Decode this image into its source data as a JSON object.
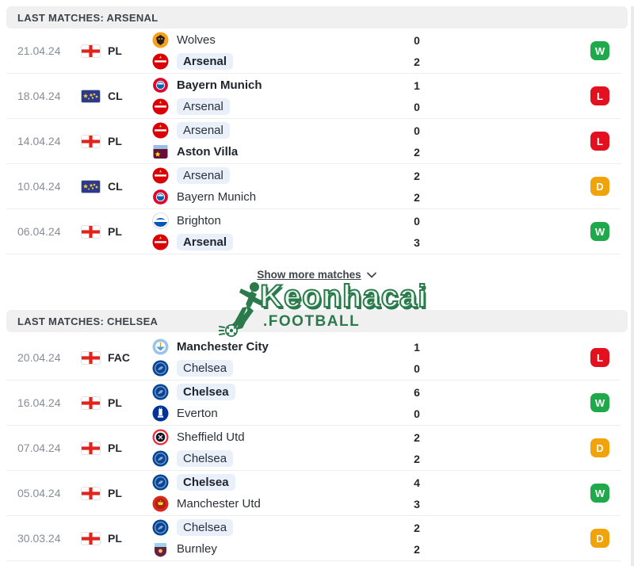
{
  "page": {
    "background": "#ffffff"
  },
  "result_colors": {
    "W": "#1fa94a",
    "L": "#e3101f",
    "D": "#f0a30a"
  },
  "highlight_bg": "#e9f0fa",
  "watermark": {
    "line1": "Keonhacai",
    "line2": ".FOOTBALL",
    "color": "#2a7a4b"
  },
  "show_more": {
    "label": "Show more matches"
  },
  "teams": {
    "wolves": {
      "name": "Wolves",
      "colors": [
        "#F9A01B",
        "#231F20"
      ]
    },
    "arsenal": {
      "name": "Arsenal",
      "colors": [
        "#DB0007",
        "#FFFFFF"
      ]
    },
    "bayern": {
      "name": "Bayern Munich",
      "colors": [
        "#DC052D",
        "#0066B2"
      ]
    },
    "astonvilla": {
      "name": "Aston Villa",
      "colors": [
        "#670E36",
        "#FFE600",
        "#95BFE5"
      ]
    },
    "brighton": {
      "name": "Brighton",
      "colors": [
        "#0057B8",
        "#FFFFFF"
      ]
    },
    "mancity": {
      "name": "Manchester City",
      "colors": [
        "#98C5E9",
        "#FFFFFF"
      ]
    },
    "chelsea": {
      "name": "Chelsea",
      "colors": [
        "#034694",
        "#8FA2D4"
      ]
    },
    "everton": {
      "name": "Everton",
      "colors": [
        "#003399",
        "#FFFFFF"
      ]
    },
    "sheffield": {
      "name": "Sheffield Utd",
      "colors": [
        "#EE2737",
        "#101820"
      ]
    },
    "manutd": {
      "name": "Manchester Utd",
      "colors": [
        "#DA291C",
        "#FBE122"
      ]
    },
    "burnley": {
      "name": "Burnley",
      "colors": [
        "#6C1D45",
        "#99D6EA"
      ]
    }
  },
  "sections": [
    {
      "title": "LAST MATCHES: ARSENAL",
      "focus_team": "arsenal",
      "matches": [
        {
          "date": "21.04.24",
          "flag": "england",
          "comp": "PL",
          "home": {
            "team": "wolves",
            "score": 0
          },
          "away": {
            "team": "arsenal",
            "score": 2
          },
          "result": "W"
        },
        {
          "date": "18.04.24",
          "flag": "ucl",
          "comp": "CL",
          "home": {
            "team": "bayern",
            "score": 1
          },
          "away": {
            "team": "arsenal",
            "score": 0
          },
          "result": "L"
        },
        {
          "date": "14.04.24",
          "flag": "england",
          "comp": "PL",
          "home": {
            "team": "arsenal",
            "score": 0
          },
          "away": {
            "team": "astonvilla",
            "score": 2
          },
          "result": "L"
        },
        {
          "date": "10.04.24",
          "flag": "ucl",
          "comp": "CL",
          "home": {
            "team": "arsenal",
            "score": 2
          },
          "away": {
            "team": "bayern",
            "score": 2
          },
          "result": "D"
        },
        {
          "date": "06.04.24",
          "flag": "england",
          "comp": "PL",
          "home": {
            "team": "brighton",
            "score": 0
          },
          "away": {
            "team": "arsenal",
            "score": 3
          },
          "result": "W"
        }
      ]
    },
    {
      "title": "LAST MATCHES: CHELSEA",
      "focus_team": "chelsea",
      "matches": [
        {
          "date": "20.04.24",
          "flag": "england",
          "comp": "FAC",
          "home": {
            "team": "mancity",
            "score": 1
          },
          "away": {
            "team": "chelsea",
            "score": 0
          },
          "result": "L"
        },
        {
          "date": "16.04.24",
          "flag": "england",
          "comp": "PL",
          "home": {
            "team": "chelsea",
            "score": 6
          },
          "away": {
            "team": "everton",
            "score": 0
          },
          "result": "W"
        },
        {
          "date": "07.04.24",
          "flag": "england",
          "comp": "PL",
          "home": {
            "team": "sheffield",
            "score": 2
          },
          "away": {
            "team": "chelsea",
            "score": 2
          },
          "result": "D"
        },
        {
          "date": "05.04.24",
          "flag": "england",
          "comp": "PL",
          "home": {
            "team": "chelsea",
            "score": 4
          },
          "away": {
            "team": "manutd",
            "score": 3
          },
          "result": "W"
        },
        {
          "date": "30.03.24",
          "flag": "england",
          "comp": "PL",
          "home": {
            "team": "chelsea",
            "score": 2
          },
          "away": {
            "team": "burnley",
            "score": 2
          },
          "result": "D"
        }
      ]
    }
  ]
}
